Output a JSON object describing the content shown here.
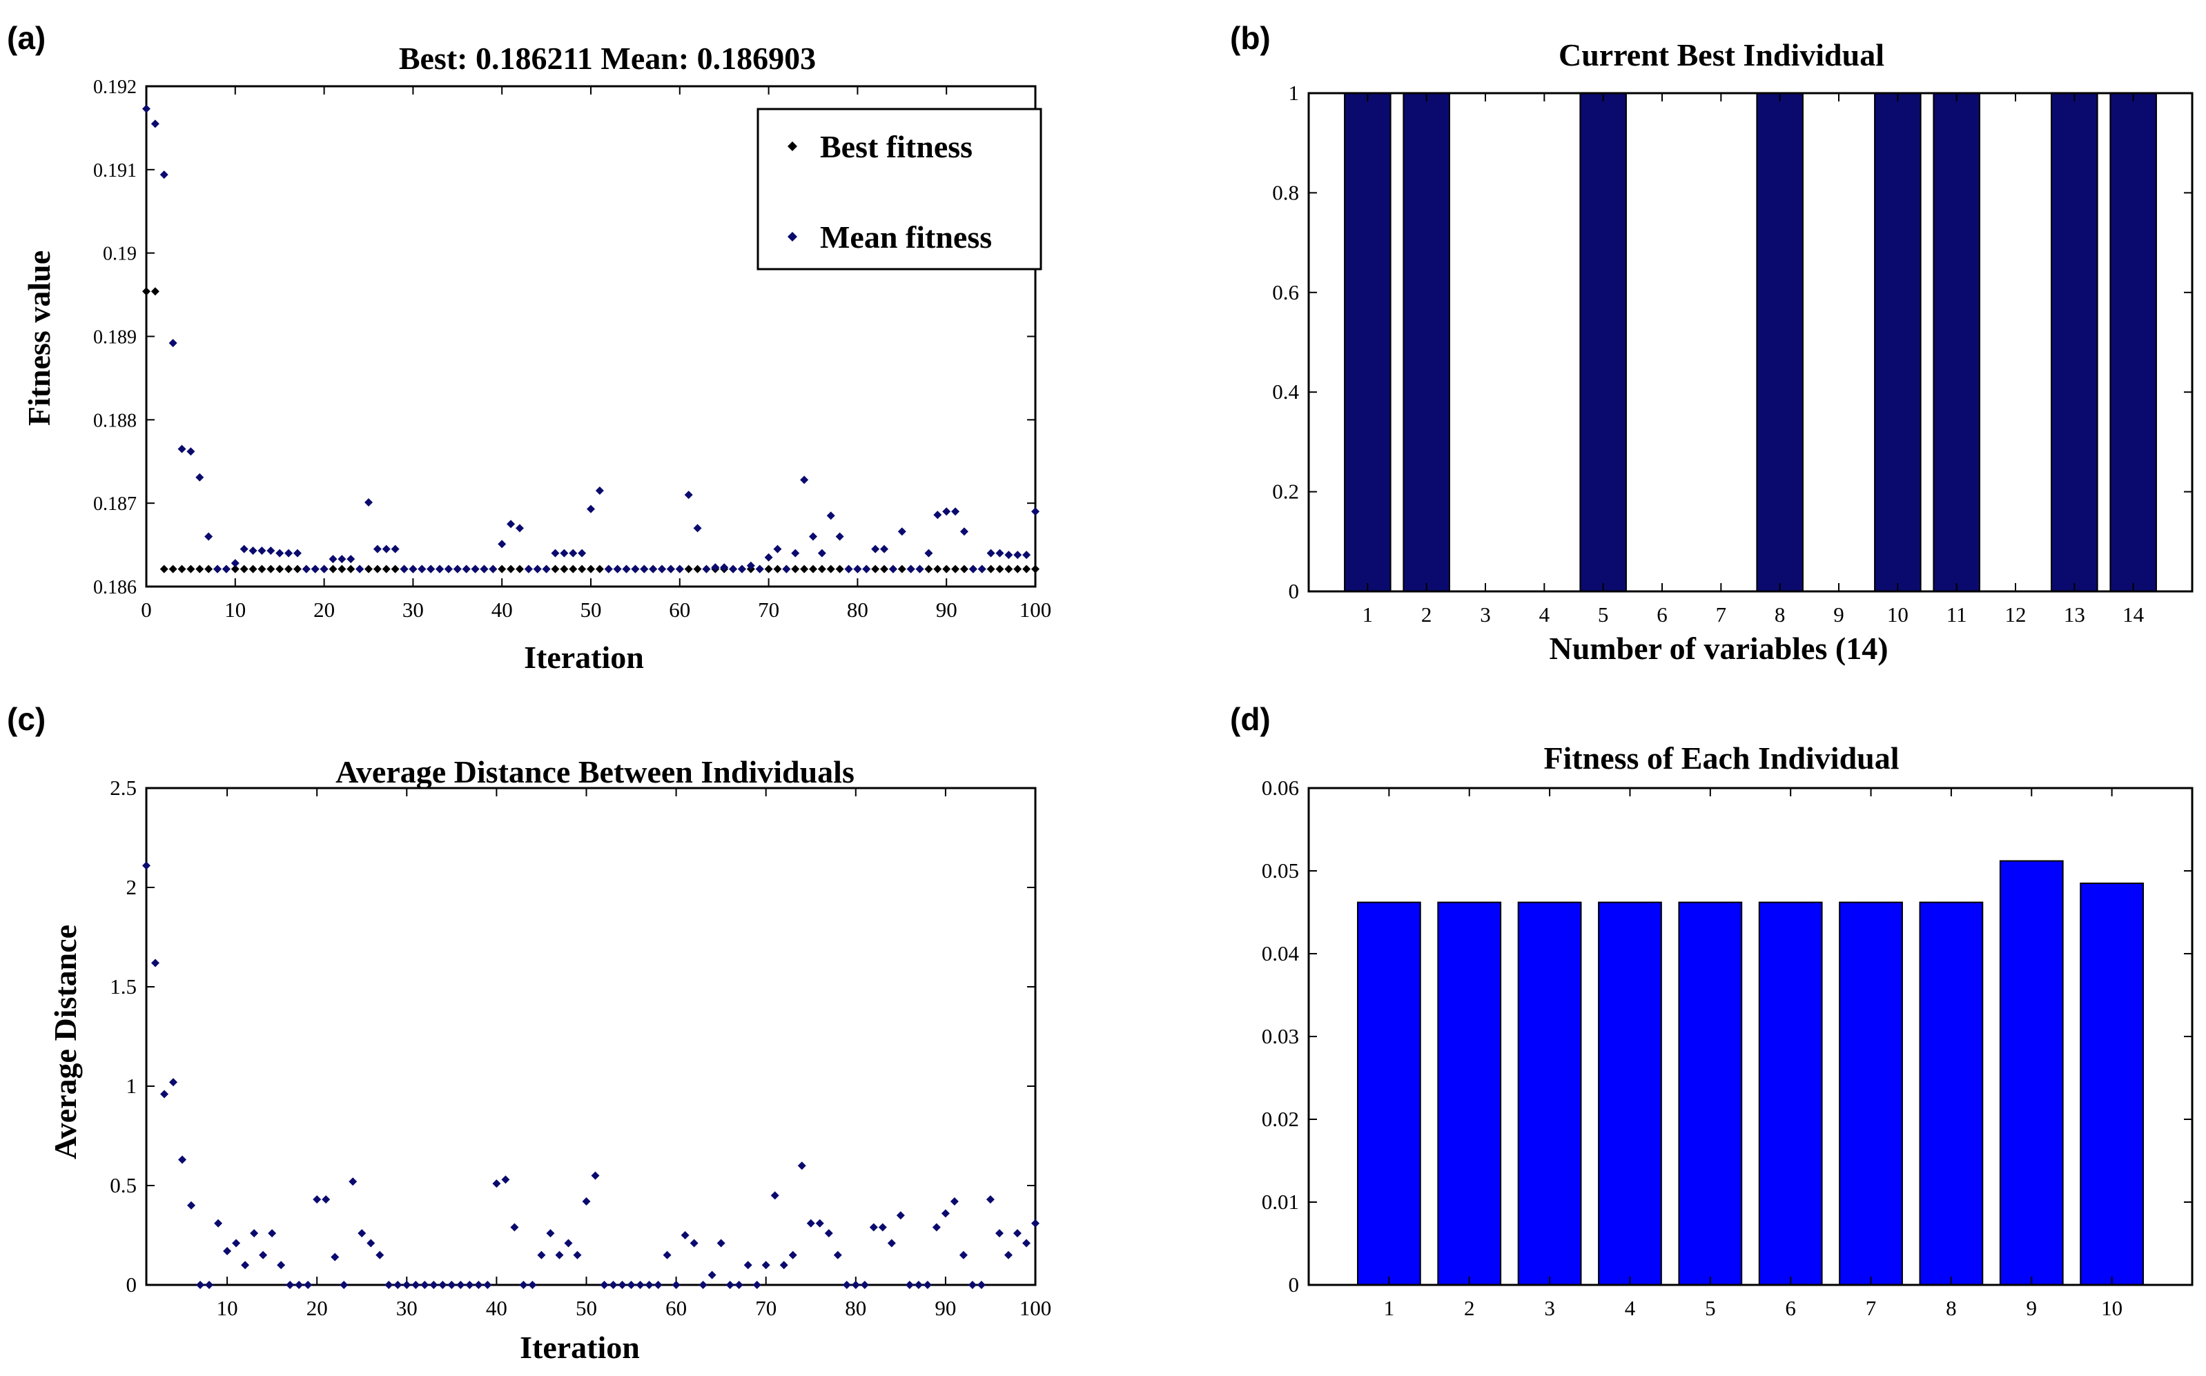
{
  "panels": {
    "a": {
      "label": "(a)"
    },
    "b": {
      "label": "(b)"
    },
    "c": {
      "label": "(c)"
    },
    "d": {
      "label": "(d)"
    }
  },
  "colors": {
    "navy": "#0a0a6e",
    "black": "#000000",
    "blue": "#0000ff",
    "axis": "#000000"
  },
  "chart_data": [
    {
      "id": "a",
      "type": "scatter",
      "title": "Best: 0.186211  Mean:  0.186903",
      "xlabel": "Iteration",
      "ylabel": "Fitness value",
      "xlim": [
        0,
        100
      ],
      "ylim": [
        0.186,
        0.192
      ],
      "xticks": [
        0,
        10,
        20,
        30,
        40,
        50,
        60,
        70,
        80,
        90,
        100
      ],
      "xtick_labels": [
        "0",
        "10",
        "20",
        "30",
        "40",
        "50",
        "60",
        "70",
        "80",
        "90",
        "100"
      ],
      "yticks": [
        0.186,
        0.187,
        0.188,
        0.189,
        0.19,
        0.191,
        0.192
      ],
      "ytick_labels": [
        "0.186",
        "0.187",
        "0.188",
        "0.189",
        "0.19",
        "0.191",
        "0.192"
      ],
      "legend": [
        "Best fitness",
        "Mean fitness"
      ],
      "legend_position": "top-right",
      "series": [
        {
          "name": "Best fitness",
          "color": "#000000",
          "x": [
            0,
            1,
            2,
            3,
            4,
            5,
            6,
            7,
            8,
            9,
            10,
            11,
            12,
            13,
            14,
            15,
            16,
            17,
            18,
            19,
            20,
            21,
            22,
            23,
            24,
            25,
            26,
            27,
            28,
            29,
            30,
            31,
            32,
            33,
            34,
            35,
            36,
            37,
            38,
            39,
            40,
            41,
            42,
            43,
            44,
            45,
            46,
            47,
            48,
            49,
            50,
            51,
            52,
            53,
            54,
            55,
            56,
            57,
            58,
            59,
            60,
            61,
            62,
            63,
            64,
            65,
            66,
            67,
            68,
            69,
            70,
            71,
            72,
            73,
            74,
            75,
            76,
            77,
            78,
            79,
            80,
            81,
            82,
            83,
            84,
            85,
            86,
            87,
            88,
            89,
            90,
            91,
            92,
            93,
            94,
            95,
            96,
            97,
            98,
            99,
            100
          ],
          "y": [
            0.18954,
            0.18954,
            0.18621,
            0.18621,
            0.18621,
            0.18621,
            0.18621,
            0.18621,
            0.18621,
            0.18621,
            0.18621,
            0.18621,
            0.18621,
            0.18621,
            0.18621,
            0.18621,
            0.18621,
            0.18621,
            0.18621,
            0.18621,
            0.18621,
            0.18621,
            0.18621,
            0.18621,
            0.18621,
            0.18621,
            0.18621,
            0.18621,
            0.18621,
            0.18621,
            0.18621,
            0.18621,
            0.18621,
            0.18621,
            0.18621,
            0.18621,
            0.18621,
            0.18621,
            0.18621,
            0.18621,
            0.18621,
            0.18621,
            0.18621,
            0.18621,
            0.18621,
            0.18621,
            0.18621,
            0.18621,
            0.18621,
            0.18621,
            0.18621,
            0.18621,
            0.18621,
            0.18621,
            0.18621,
            0.18621,
            0.18621,
            0.18621,
            0.18621,
            0.18621,
            0.18621,
            0.18621,
            0.18621,
            0.18621,
            0.18621,
            0.18621,
            0.18621,
            0.18621,
            0.18621,
            0.18621,
            0.18621,
            0.18621,
            0.18621,
            0.18621,
            0.18621,
            0.18621,
            0.18621,
            0.18621,
            0.18621,
            0.18621,
            0.18621,
            0.18621,
            0.18621,
            0.18621,
            0.18621,
            0.18621,
            0.18621,
            0.18621,
            0.18621,
            0.18621,
            0.18621,
            0.18621,
            0.18621,
            0.18621,
            0.18621,
            0.18621,
            0.18621,
            0.18621,
            0.18621,
            0.18621,
            0.18621
          ]
        },
        {
          "name": "Mean fitness",
          "color": "#0a0a6e",
          "x": [
            0,
            1,
            2,
            3,
            4,
            5,
            6,
            7,
            8,
            9,
            10,
            11,
            12,
            13,
            14,
            15,
            16,
            17,
            18,
            19,
            20,
            21,
            22,
            23,
            24,
            25,
            26,
            27,
            28,
            29,
            30,
            31,
            32,
            33,
            34,
            35,
            36,
            37,
            38,
            39,
            40,
            41,
            42,
            43,
            44,
            45,
            46,
            47,
            48,
            49,
            50,
            51,
            52,
            53,
            54,
            55,
            56,
            57,
            58,
            59,
            60,
            61,
            62,
            63,
            64,
            65,
            66,
            67,
            68,
            69,
            70,
            71,
            72,
            73,
            74,
            75,
            76,
            77,
            78,
            79,
            80,
            81,
            82,
            83,
            84,
            85,
            86,
            87,
            88,
            89,
            90,
            91,
            92,
            93,
            94,
            95,
            96,
            97,
            98,
            99,
            100
          ],
          "y": [
            0.19173,
            0.19155,
            0.19094,
            0.18892,
            0.18765,
            0.18762,
            0.18731,
            0.1866,
            0.18621,
            0.18621,
            0.18628,
            0.18645,
            0.18643,
            0.18643,
            0.18643,
            0.1864,
            0.1864,
            0.1864,
            0.18621,
            0.18621,
            0.18621,
            0.18633,
            0.18633,
            0.18633,
            0.18621,
            0.18701,
            0.18645,
            0.18645,
            0.18645,
            0.18621,
            0.18621,
            0.18621,
            0.18621,
            0.18621,
            0.18621,
            0.18621,
            0.18621,
            0.18621,
            0.18621,
            0.18621,
            0.18651,
            0.18675,
            0.1867,
            0.18621,
            0.18621,
            0.18621,
            0.1864,
            0.1864,
            0.1864,
            0.1864,
            0.18693,
            0.18715,
            0.18621,
            0.18621,
            0.18621,
            0.18621,
            0.18621,
            0.18621,
            0.18621,
            0.18621,
            0.18621,
            0.1871,
            0.1867,
            0.18621,
            0.18623,
            0.18623,
            0.18621,
            0.18621,
            0.18625,
            0.18621,
            0.18635,
            0.18645,
            0.18621,
            0.1864,
            0.18728,
            0.1866,
            0.1864,
            0.18685,
            0.1866,
            0.18621,
            0.18621,
            0.18621,
            0.18645,
            0.18645,
            0.18621,
            0.18666,
            0.18621,
            0.18621,
            0.1864,
            0.18686,
            0.1869,
            0.1869,
            0.18666,
            0.18621,
            0.18621,
            0.1864,
            0.1864,
            0.18638,
            0.18638,
            0.18638,
            0.1869
          ]
        }
      ]
    },
    {
      "id": "b",
      "type": "bar",
      "title": "Current Best Individual",
      "xlabel": "Number of variables (14)",
      "ylabel": "",
      "categories": [
        "1",
        "2",
        "3",
        "4",
        "5",
        "6",
        "7",
        "8",
        "9",
        "10",
        "11",
        "12",
        "13",
        "14"
      ],
      "values": [
        1,
        1,
        0,
        0,
        1,
        0,
        0,
        1,
        0,
        1,
        1,
        0,
        1,
        1
      ],
      "ylim": [
        0,
        1
      ],
      "yticks": [
        0,
        0.2,
        0.4,
        0.6,
        0.8,
        1
      ],
      "ytick_labels": [
        "0",
        "0.2",
        "0.4",
        "0.6",
        "0.8",
        "1"
      ],
      "color": "#0a0a6e"
    },
    {
      "id": "c",
      "type": "scatter",
      "title": "Average Distance Between Individuals",
      "xlabel": "Iteration",
      "ylabel": "Average Distance",
      "xlim": [
        1,
        100
      ],
      "ylim": [
        0,
        2.5
      ],
      "xticks": [
        10,
        20,
        30,
        40,
        50,
        60,
        70,
        80,
        90,
        100
      ],
      "xtick_labels": [
        "10",
        "20",
        "30",
        "40",
        "50",
        "60",
        "70",
        "80",
        "90",
        "100"
      ],
      "yticks": [
        0,
        0.5,
        1,
        1.5,
        2,
        2.5
      ],
      "ytick_labels": [
        "0",
        "0.5",
        "1",
        "1.5",
        "2",
        "2.5"
      ],
      "color": "#0a0a6e",
      "x": [
        1,
        2,
        3,
        4,
        5,
        6,
        7,
        8,
        9,
        10,
        11,
        12,
        13,
        14,
        15,
        16,
        17,
        18,
        19,
        20,
        21,
        22,
        23,
        24,
        25,
        26,
        27,
        28,
        29,
        30,
        31,
        32,
        33,
        34,
        35,
        36,
        37,
        38,
        39,
        40,
        41,
        42,
        43,
        44,
        45,
        46,
        47,
        48,
        49,
        50,
        51,
        52,
        53,
        54,
        55,
        56,
        57,
        58,
        59,
        60,
        61,
        62,
        63,
        64,
        65,
        66,
        67,
        68,
        69,
        70,
        71,
        72,
        73,
        74,
        75,
        76,
        77,
        78,
        79,
        80,
        81,
        82,
        83,
        84,
        85,
        86,
        87,
        88,
        89,
        90,
        91,
        92,
        93,
        94,
        95,
        96,
        97,
        98,
        99,
        100
      ],
      "y": [
        2.11,
        1.62,
        0.96,
        1.02,
        0.63,
        0.4,
        0,
        0,
        0.31,
        0.17,
        0.21,
        0.1,
        0.26,
        0.15,
        0.26,
        0.1,
        0,
        0,
        0,
        0.43,
        0.43,
        0.14,
        0,
        0.52,
        0.26,
        0.21,
        0.15,
        0,
        0,
        0,
        0,
        0,
        0,
        0,
        0,
        0,
        0,
        0,
        0,
        0.51,
        0.53,
        0.29,
        0,
        0,
        0.15,
        0.26,
        0.15,
        0.21,
        0.15,
        0.42,
        0.55,
        0,
        0,
        0,
        0,
        0,
        0,
        0,
        0.15,
        0,
        0.25,
        0.21,
        0,
        0.05,
        0.21,
        0,
        0,
        0.1,
        0,
        0.1,
        0.45,
        0.1,
        0.15,
        0.6,
        0.31,
        0.31,
        0.26,
        0.15,
        0,
        0,
        0,
        0.29,
        0.29,
        0.21,
        0.35,
        0,
        0,
        0,
        0.29,
        0.36,
        0.42,
        0.15,
        0,
        0,
        0.43,
        0.26,
        0.15,
        0.26,
        0.21,
        0.31
      ]
    },
    {
      "id": "d",
      "type": "bar",
      "title": "Fitness of Each Individual",
      "xlabel": "",
      "ylabel": "",
      "categories": [
        "1",
        "2",
        "3",
        "4",
        "5",
        "6",
        "7",
        "8",
        "9",
        "10"
      ],
      "values": [
        0.0462,
        0.0462,
        0.0462,
        0.0462,
        0.0462,
        0.0462,
        0.0462,
        0.0462,
        0.0512,
        0.0485
      ],
      "ylim": [
        0,
        0.06
      ],
      "yticks": [
        0,
        0.01,
        0.02,
        0.03,
        0.04,
        0.05,
        0.06
      ],
      "ytick_labels": [
        "0",
        "0.01",
        "0.02",
        "0.03",
        "0.04",
        "0.05",
        "0.06"
      ],
      "color": "#0000ff"
    }
  ]
}
